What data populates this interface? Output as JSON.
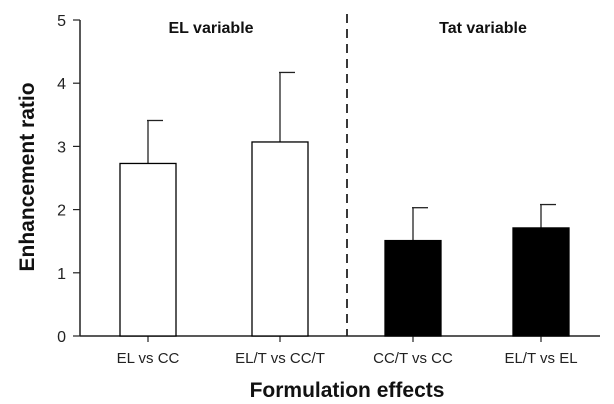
{
  "chart_data": {
    "type": "bar",
    "title": "",
    "xlabel": "Formulation effects",
    "ylabel": "Enhancement ratio",
    "ylim": [
      0,
      5
    ],
    "yticks": [
      "0",
      "1",
      "2",
      "3",
      "4",
      "5"
    ],
    "categories": [
      "EL vs CC",
      "EL/T vs CC/T",
      "CC/T vs CC",
      "EL/T vs EL"
    ],
    "values": [
      2.73,
      3.07,
      1.51,
      1.71
    ],
    "errors": [
      0.68,
      1.1,
      0.52,
      0.37
    ],
    "bar_fills": [
      "#ffffff",
      "#ffffff",
      "#000000",
      "#000000"
    ],
    "bar_stroke": "#000000",
    "groups": [
      {
        "label": "EL variable",
        "categories": [
          "EL vs CC",
          "EL/T vs CC/T"
        ]
      },
      {
        "label": "Tat variable",
        "categories": [
          "CC/T vs CC",
          "EL/T vs EL"
        ]
      }
    ],
    "group_divider": "dashed",
    "grid": false,
    "legend": "none"
  }
}
